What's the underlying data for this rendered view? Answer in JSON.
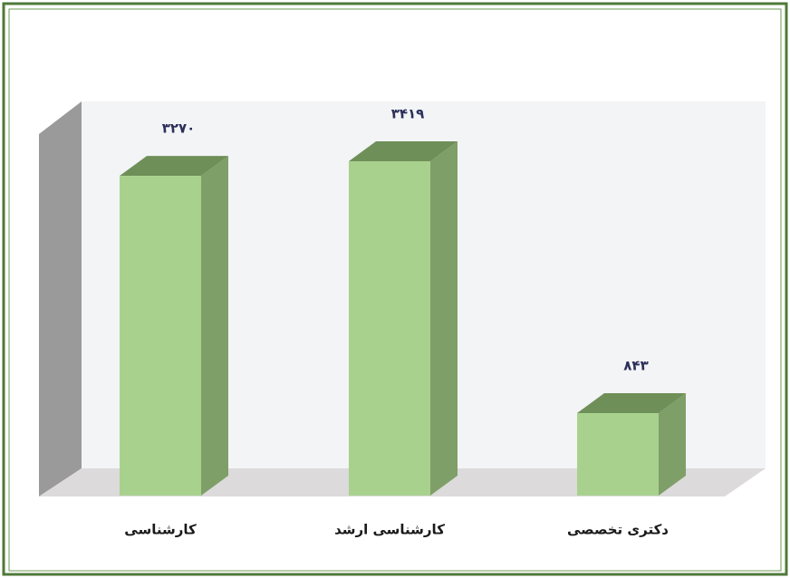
{
  "chart_data": {
    "type": "bar3d",
    "categories": [
      "کارشناسی",
      "کارشناسی ارشد",
      "دکتری تخصصی"
    ],
    "values": [
      3270,
      3419,
      843
    ],
    "value_labels": [
      "۳۲۷۰",
      "۳۴۱۹",
      "۸۴۳"
    ],
    "color": "#a9d18e"
  }
}
